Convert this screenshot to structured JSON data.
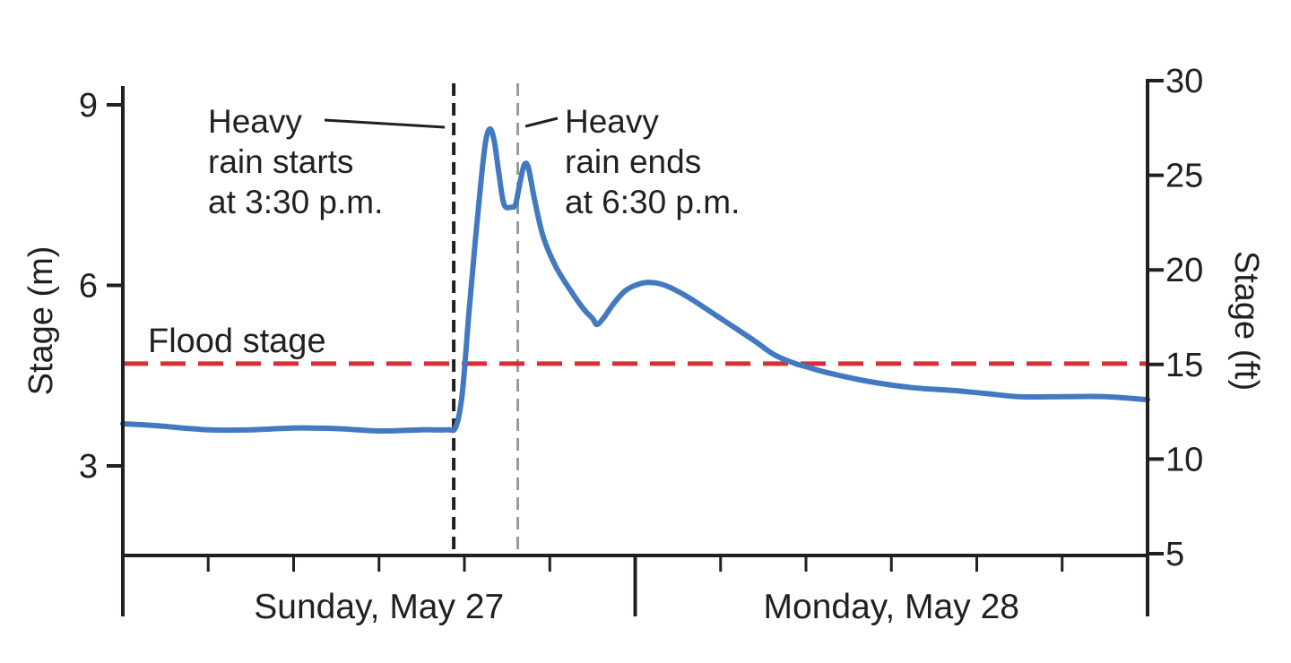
{
  "chart_data": {
    "type": "line",
    "left_axis": {
      "label": "Stage (m)",
      "ticks": [
        3,
        6,
        9
      ],
      "range": [
        1.5,
        9.3
      ]
    },
    "right_axis": {
      "label": "Stage (ft)",
      "ticks": [
        5,
        10,
        15,
        20,
        25,
        30
      ],
      "range": [
        5,
        30
      ]
    },
    "x_axis": {
      "unit": "hours since start of Sunday, May 27",
      "range": [
        0,
        48
      ],
      "day_labels": [
        {
          "text": "Sunday, May 27",
          "center_hour": 12
        },
        {
          "text": "Monday, May 28",
          "center_hour": 36
        }
      ],
      "major_ticks": [
        0,
        24,
        48
      ],
      "minor_ticks": [
        4,
        8,
        12,
        16,
        20,
        28,
        32,
        36,
        40,
        44
      ]
    },
    "series": [
      {
        "name": "Stage",
        "color": "#4279c0",
        "points": [
          [
            0,
            3.7
          ],
          [
            1.5,
            3.67
          ],
          [
            4,
            3.6
          ],
          [
            6,
            3.6
          ],
          [
            8,
            3.63
          ],
          [
            10,
            3.62
          ],
          [
            12,
            3.58
          ],
          [
            14,
            3.6
          ],
          [
            15.2,
            3.6
          ],
          [
            15.6,
            3.65
          ],
          [
            15.9,
            4.2
          ],
          [
            16.2,
            5.5
          ],
          [
            16.5,
            6.7
          ],
          [
            16.8,
            7.8
          ],
          [
            17,
            8.4
          ],
          [
            17.2,
            8.6
          ],
          [
            17.4,
            8.4
          ],
          [
            17.6,
            7.9
          ],
          [
            17.85,
            7.35
          ],
          [
            18.2,
            7.3
          ],
          [
            18.4,
            7.35
          ],
          [
            18.6,
            7.7
          ],
          [
            18.8,
            8.0
          ],
          [
            19,
            7.95
          ],
          [
            19.3,
            7.4
          ],
          [
            19.7,
            6.8
          ],
          [
            20.3,
            6.3
          ],
          [
            21,
            5.9
          ],
          [
            21.6,
            5.6
          ],
          [
            22,
            5.45
          ],
          [
            22.2,
            5.35
          ],
          [
            22.5,
            5.45
          ],
          [
            23,
            5.7
          ],
          [
            23.5,
            5.9
          ],
          [
            24,
            6.0
          ],
          [
            24.6,
            6.05
          ],
          [
            25.4,
            6.0
          ],
          [
            26.5,
            5.8
          ],
          [
            28,
            5.45
          ],
          [
            29.5,
            5.1
          ],
          [
            30.5,
            4.85
          ],
          [
            31.5,
            4.7
          ],
          [
            32,
            4.65
          ],
          [
            33,
            4.55
          ],
          [
            35,
            4.4
          ],
          [
            37,
            4.3
          ],
          [
            39,
            4.25
          ],
          [
            40.5,
            4.2
          ],
          [
            42,
            4.15
          ],
          [
            44,
            4.15
          ],
          [
            46,
            4.15
          ],
          [
            48,
            4.1
          ]
        ]
      }
    ],
    "reference_lines": [
      {
        "label": "Flood stage",
        "value": 4.7,
        "color": "#d62f35",
        "style": "dashed"
      }
    ],
    "annotations": [
      {
        "lines": [
          "Heavy",
          "rain starts",
          "at 3:30 p.m."
        ],
        "hour": 15.5,
        "line_color": "#231f20"
      },
      {
        "lines": [
          "Heavy",
          "rain ends",
          "at 6:30 p.m."
        ],
        "hour": 18.5,
        "line_color": "#9a9a9a"
      }
    ]
  }
}
